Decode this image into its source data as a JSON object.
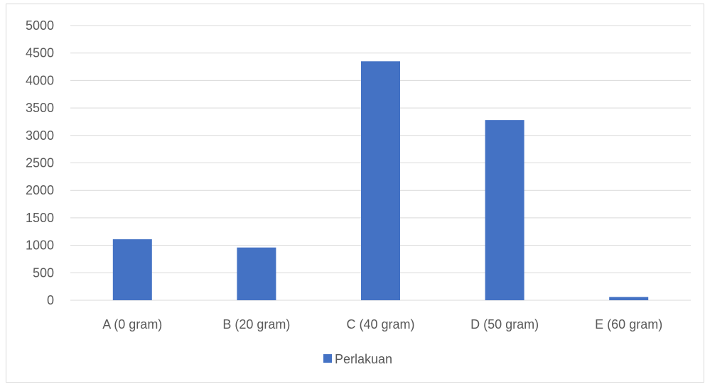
{
  "chart_data": {
    "type": "bar",
    "categories": [
      "A (0 gram)",
      "B (20 gram)",
      "C (40 gram)",
      "D (50 gram)",
      "E (60 gram)"
    ],
    "series": [
      {
        "name": "Perlakuan",
        "values": [
          1110,
          960,
          4350,
          3280,
          60
        ]
      }
    ],
    "ylim": [
      0,
      5000
    ],
    "yticks": [
      0,
      500,
      1000,
      1500,
      2000,
      2500,
      3000,
      3500,
      4000,
      4500,
      5000
    ],
    "grid": true,
    "legend": "bottom",
    "colors": {
      "series": "#4472c4",
      "grid": "#d9d9d9",
      "text": "#595959"
    }
  }
}
